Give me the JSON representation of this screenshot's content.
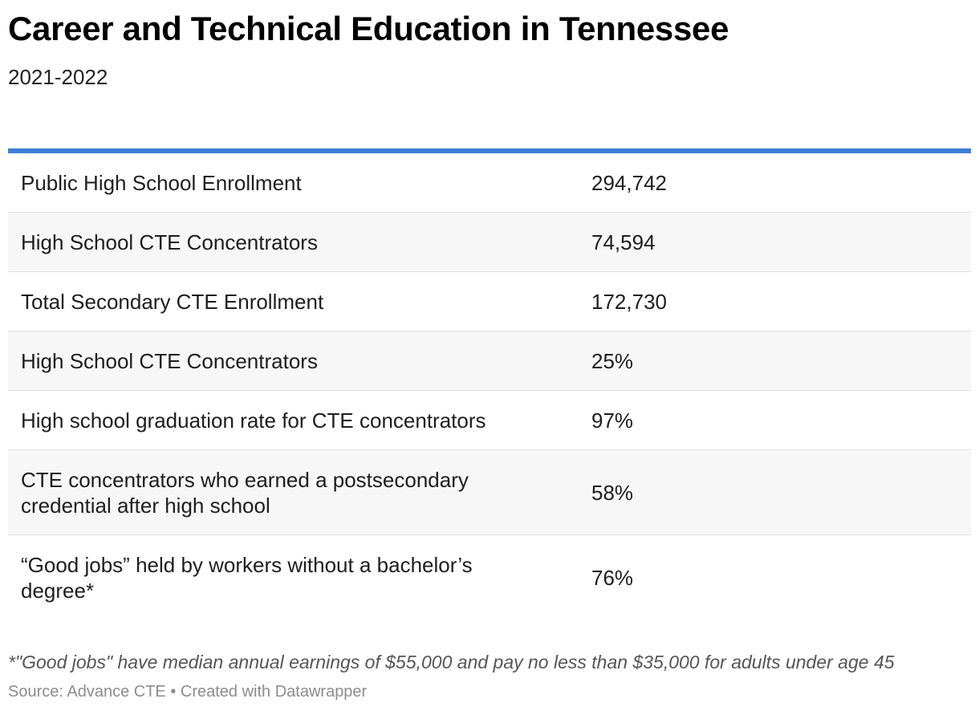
{
  "title": "Career and Technical Education in Tennessee",
  "subtitle": "2021-2022",
  "chart_data": {
    "type": "table",
    "title": "Career and Technical Education in Tennessee",
    "subtitle": "2021-2022",
    "rows": [
      {
        "label": "Public High School Enrollment",
        "value": "294,742"
      },
      {
        "label": "High School CTE Concentrators",
        "value": "74,594"
      },
      {
        "label": "Total Secondary CTE Enrollment",
        "value": "172,730"
      },
      {
        "label": "High School CTE Concentrators",
        "value": "25%"
      },
      {
        "label": "High school graduation rate for CTE concentrators",
        "value": "97%"
      },
      {
        "label": "CTE concentrators who earned a postsecondary credential after high school",
        "value": "58%"
      },
      {
        "label": "“Good jobs” held by workers without a bachelor’s degree*",
        "value": "76%"
      }
    ]
  },
  "footnote": "*\"Good jobs\" have median annual earnings of $55,000 and pay no less than $35,000 for adults under age 45",
  "source": "Source: Advance CTE • Created with Datawrapper",
  "colors": {
    "accent_rule": "#3e7cd6",
    "row_shade": "#f7f7f7",
    "divider": "#e0e0e0"
  }
}
